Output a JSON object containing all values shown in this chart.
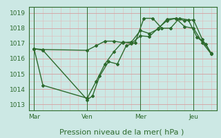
{
  "xlabel": "Pression niveau de la mer( hPa )",
  "bg_color": "#cce8e4",
  "line_color": "#2d6a2d",
  "grid_color_major": "#d4a0a0",
  "grid_color_minor": "#e0b8b8",
  "yticks": [
    1013,
    1014,
    1015,
    1016,
    1017,
    1018,
    1019
  ],
  "ylim": [
    1012.6,
    1019.4
  ],
  "xtick_labels": [
    "Mar",
    "Ven",
    "Mer",
    "Jeu"
  ],
  "xtick_positions": [
    0,
    30,
    60,
    90
  ],
  "xlim": [
    -3,
    103
  ],
  "line1_x": [
    0,
    5,
    30,
    35,
    40,
    45,
    50,
    55,
    60,
    65,
    70,
    75,
    80,
    85,
    90,
    95,
    100
  ],
  "line1_y": [
    1016.65,
    1016.6,
    1016.55,
    1016.85,
    1017.15,
    1017.15,
    1017.05,
    1017.1,
    1017.85,
    1017.65,
    1017.95,
    1018.6,
    1018.65,
    1018.1,
    1018.0,
    1017.05,
    1016.3
  ],
  "line2_x": [
    0,
    5,
    30,
    33,
    37,
    42,
    47,
    52,
    57,
    62,
    67,
    72,
    77,
    82,
    87,
    92,
    97,
    100
  ],
  "line2_y": [
    1016.65,
    1016.55,
    1013.3,
    1013.55,
    1014.85,
    1015.8,
    1015.65,
    1016.85,
    1017.05,
    1018.65,
    1018.65,
    1018.0,
    1018.0,
    1018.65,
    1018.55,
    1017.4,
    1016.95,
    1016.3
  ],
  "line3_x": [
    0,
    5,
    30,
    35,
    40,
    45,
    50,
    55,
    60,
    65,
    70,
    75,
    80,
    85,
    90,
    95,
    100
  ],
  "line3_y": [
    1016.65,
    1014.25,
    1013.4,
    1014.5,
    1015.65,
    1016.45,
    1017.1,
    1017.0,
    1017.5,
    1017.45,
    1018.0,
    1018.5,
    1018.65,
    1018.5,
    1018.55,
    1017.25,
    1016.35
  ],
  "vline_positions": [
    0,
    30,
    60,
    90
  ],
  "marker": "D",
  "markersize": 2.0,
  "linewidth": 1.0,
  "tick_fontsize": 6.5,
  "xlabel_fontsize": 8
}
